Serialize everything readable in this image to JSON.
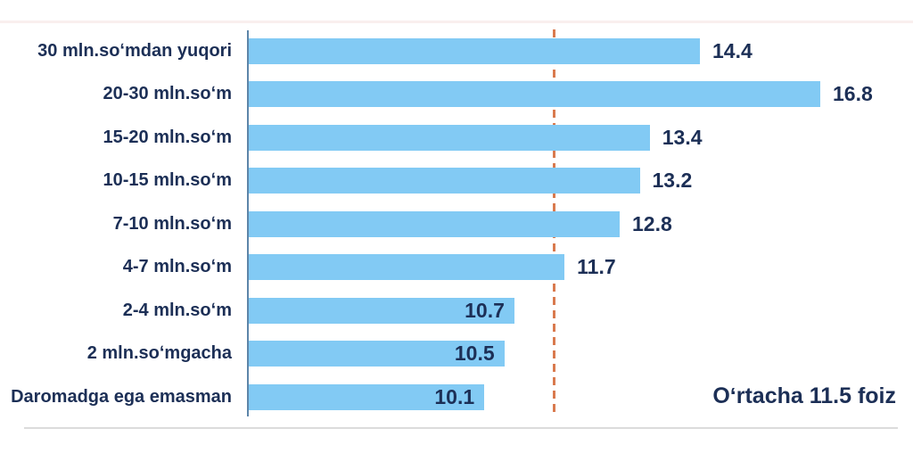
{
  "chart_data": {
    "type": "bar",
    "orientation": "horizontal",
    "grid": false,
    "legend": false,
    "categories": [
      "30 mln.soʻmdan yuqori",
      "20-30 mln.soʻm",
      "15-20 mln.soʻm",
      "10-15 mln.soʻm",
      "7-10 mln.soʻm",
      "4-7 mln.soʻm",
      "2-4 mln.soʻm",
      "2 mln.soʻmgacha",
      "Daromadga ega emasman"
    ],
    "values": [
      14.4,
      16.8,
      13.4,
      13.2,
      12.8,
      11.7,
      10.7,
      10.5,
      10.1
    ],
    "value_labels": [
      "14.4",
      "16.8",
      "13.4",
      "13.2",
      "12.8",
      "11.7",
      "10.7",
      "10.5",
      "10.1"
    ],
    "average": {
      "value": 11.5,
      "label": "Oʻrtacha 11.5 foiz"
    },
    "colors": {
      "bar": "#82caf4",
      "text": "#1c2f56",
      "axis": "#5d85a9",
      "average_line": "#d97a4e"
    }
  }
}
